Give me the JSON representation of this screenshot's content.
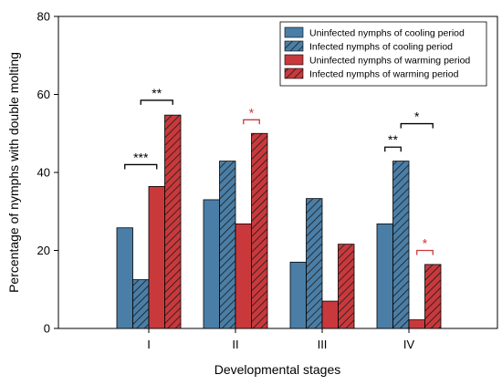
{
  "chart_data": {
    "type": "bar",
    "xlabel": "Developmental stages",
    "ylabel": "Percentage of nymphs with double molting",
    "categories": [
      "I",
      "II",
      "III",
      "IV"
    ],
    "ylim": [
      0,
      80
    ],
    "yticks": [
      "0",
      "20",
      "40",
      "60",
      "80"
    ],
    "grid": false,
    "legend_position": "top-right",
    "series": [
      {
        "name": "Uninfected nymphs of cooling period",
        "values": [
          25.8,
          33.0,
          17.0,
          26.8
        ],
        "color": "#4a7ea6",
        "hatched": false
      },
      {
        "name": "Infected nymphs of cooling period",
        "values": [
          12.5,
          42.9,
          33.3,
          42.9
        ],
        "color": "#4a7ea6",
        "hatched": true
      },
      {
        "name": "Uninfected nymphs of warming period",
        "values": [
          36.4,
          26.8,
          7.0,
          2.2
        ],
        "color": "#c9393c",
        "hatched": false
      },
      {
        "name": "Infected nymphs of warming period",
        "values": [
          54.7,
          50.0,
          21.6,
          16.4
        ],
        "color": "#c9393c",
        "hatched": true
      }
    ],
    "annotations": [
      {
        "label": "***",
        "category": 0,
        "from": 0,
        "to": 2,
        "y": 42,
        "color": "#000000"
      },
      {
        "label": "**",
        "category": 0,
        "from": 1,
        "to": 3,
        "y": 58.5,
        "color": "#000000"
      },
      {
        "label": "*",
        "category": 1,
        "from": 2,
        "to": 3,
        "y": 53.5,
        "color": "#c9393c"
      },
      {
        "label": "**",
        "category": 3,
        "from": 0,
        "to": 1,
        "y": 46.5,
        "color": "#000000"
      },
      {
        "label": "*",
        "category": 3,
        "from": 1,
        "to": 3,
        "y": 52.5,
        "color": "#000000"
      },
      {
        "label": "*",
        "category": 3,
        "from": 2,
        "to": 3,
        "y": 20,
        "color": "#c9393c"
      }
    ]
  }
}
